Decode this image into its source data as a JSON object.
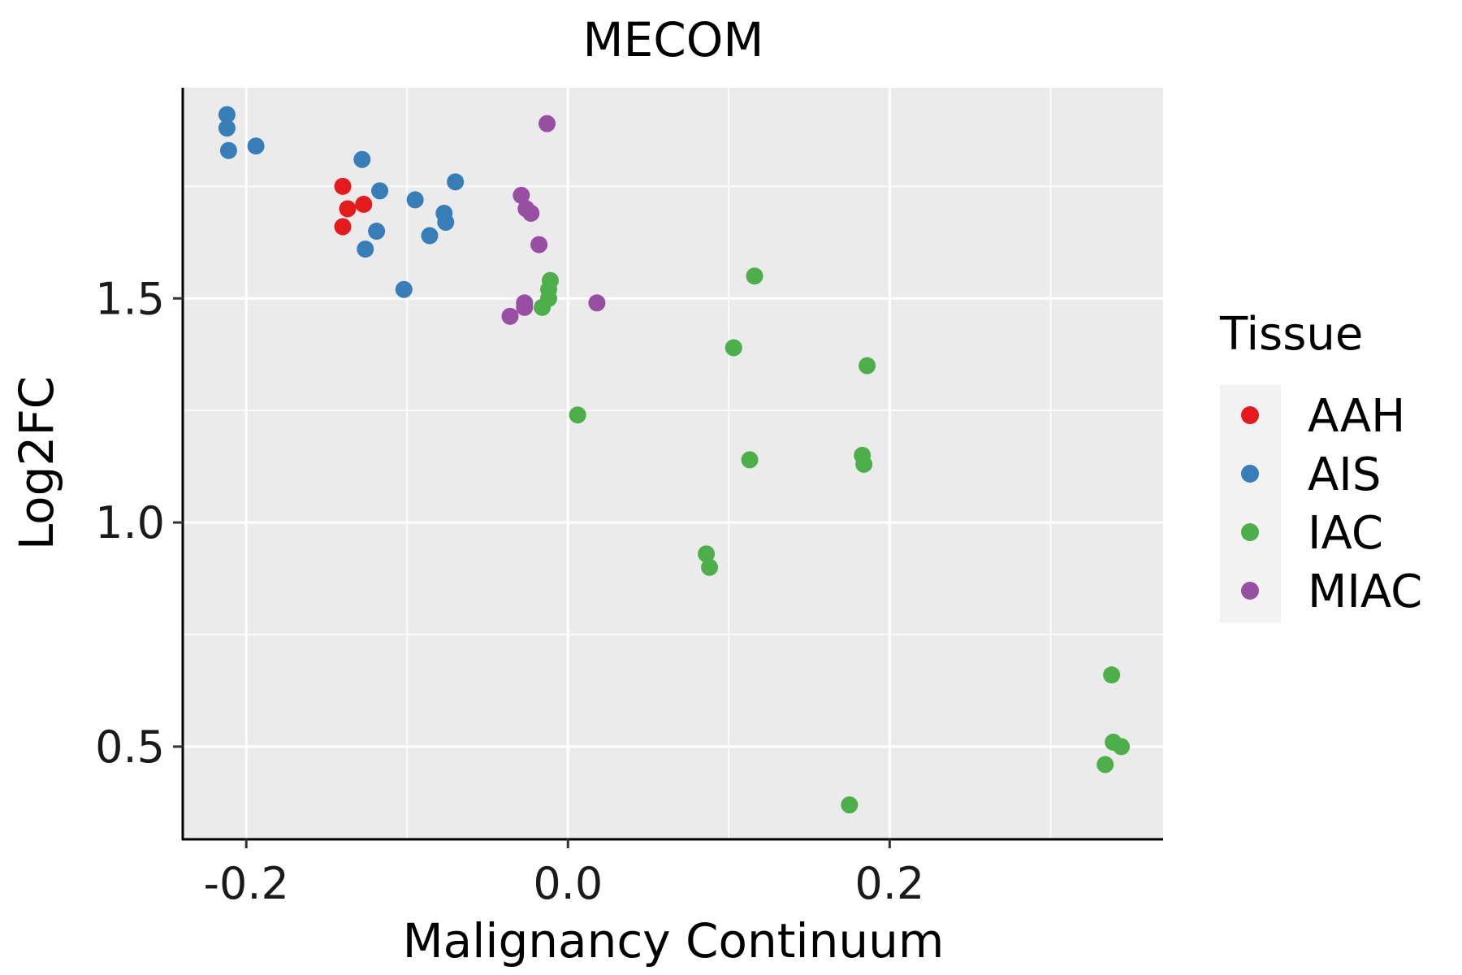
{
  "chart_data": {
    "type": "scatter",
    "title": "MECOM",
    "xlabel": "Malignancy Continuum",
    "ylabel": "Log2FC",
    "xlim": [
      -0.24,
      0.37
    ],
    "ylim": [
      0.295,
      1.97
    ],
    "x_ticks": [
      -0.2,
      0.0,
      0.2
    ],
    "x_tick_labels": [
      "-0.2",
      "0.0",
      "0.2"
    ],
    "x_minor": [
      -0.1,
      0.1,
      0.3
    ],
    "y_ticks": [
      0.5,
      1.0,
      1.5
    ],
    "y_tick_labels": [
      "0.5",
      "1.0",
      "1.5"
    ],
    "y_minor": [
      0.75,
      1.25,
      1.75
    ],
    "grid": true,
    "legend": {
      "title": "Tissue",
      "position": "right",
      "entries": [
        {
          "name": "AAH",
          "color": "#E41A1C"
        },
        {
          "name": "AIS",
          "color": "#377EB8"
        },
        {
          "name": "IAC",
          "color": "#4DAF4A"
        },
        {
          "name": "MIAC",
          "color": "#984EA3"
        }
      ]
    },
    "series": [
      {
        "name": "AAH",
        "color": "#E41A1C",
        "points": [
          {
            "x": -0.14,
            "y": 1.75
          },
          {
            "x": -0.137,
            "y": 1.7
          },
          {
            "x": -0.127,
            "y": 1.71
          },
          {
            "x": -0.14,
            "y": 1.66
          }
        ]
      },
      {
        "name": "AIS",
        "color": "#377EB8",
        "points": [
          {
            "x": -0.212,
            "y": 1.91
          },
          {
            "x": -0.212,
            "y": 1.88
          },
          {
            "x": -0.211,
            "y": 1.83
          },
          {
            "x": -0.194,
            "y": 1.84
          },
          {
            "x": -0.128,
            "y": 1.81
          },
          {
            "x": -0.117,
            "y": 1.74
          },
          {
            "x": -0.095,
            "y": 1.72
          },
          {
            "x": -0.077,
            "y": 1.69
          },
          {
            "x": -0.076,
            "y": 1.67
          },
          {
            "x": -0.119,
            "y": 1.65
          },
          {
            "x": -0.086,
            "y": 1.64
          },
          {
            "x": -0.126,
            "y": 1.61
          },
          {
            "x": -0.102,
            "y": 1.52
          },
          {
            "x": -0.07,
            "y": 1.76
          }
        ]
      },
      {
        "name": "IAC",
        "color": "#4DAF4A",
        "points": [
          {
            "x": -0.011,
            "y": 1.54
          },
          {
            "x": -0.012,
            "y": 1.52
          },
          {
            "x": -0.012,
            "y": 1.5
          },
          {
            "x": -0.016,
            "y": 1.48
          },
          {
            "x": 0.116,
            "y": 1.55
          },
          {
            "x": 0.103,
            "y": 1.39
          },
          {
            "x": 0.186,
            "y": 1.35
          },
          {
            "x": 0.006,
            "y": 1.24
          },
          {
            "x": 0.183,
            "y": 1.15
          },
          {
            "x": 0.184,
            "y": 1.13
          },
          {
            "x": 0.113,
            "y": 1.14
          },
          {
            "x": 0.086,
            "y": 0.93
          },
          {
            "x": 0.088,
            "y": 0.9
          },
          {
            "x": 0.338,
            "y": 0.66
          },
          {
            "x": 0.339,
            "y": 0.51
          },
          {
            "x": 0.344,
            "y": 0.5
          },
          {
            "x": 0.334,
            "y": 0.46
          },
          {
            "x": 0.175,
            "y": 0.37
          }
        ]
      },
      {
        "name": "MIAC",
        "color": "#984EA3",
        "points": [
          {
            "x": -0.013,
            "y": 1.89
          },
          {
            "x": -0.029,
            "y": 1.73
          },
          {
            "x": -0.026,
            "y": 1.7
          },
          {
            "x": -0.023,
            "y": 1.69
          },
          {
            "x": -0.018,
            "y": 1.62
          },
          {
            "x": -0.027,
            "y": 1.49
          },
          {
            "x": -0.027,
            "y": 1.48
          },
          {
            "x": 0.018,
            "y": 1.49
          },
          {
            "x": -0.036,
            "y": 1.46
          }
        ]
      }
    ]
  }
}
